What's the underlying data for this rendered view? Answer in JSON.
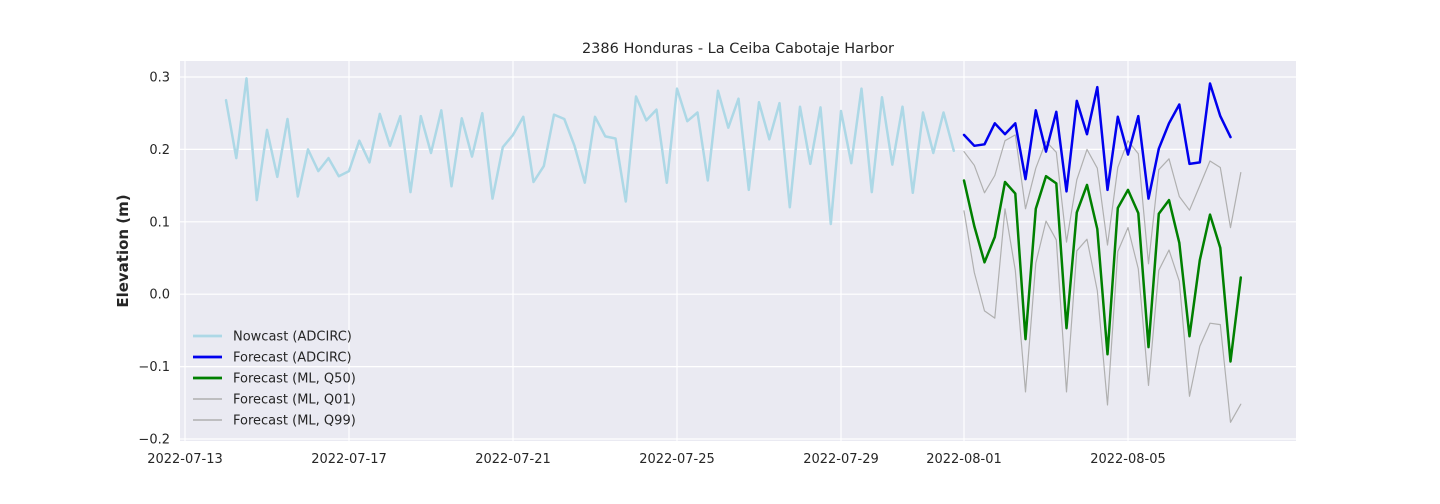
{
  "chart_data": {
    "type": "line",
    "title": "2386 Honduras - La Ceiba Cabotaje Harbor",
    "xlabel": "",
    "ylabel": "Elevation (m)",
    "x_axis": {
      "type": "date",
      "range": [
        "2022-07-13",
        "2022-08-11"
      ],
      "ticks": [
        "2022-07-13",
        "2022-07-17",
        "2022-07-21",
        "2022-07-25",
        "2022-07-29",
        "2022-08-01",
        "2022-08-05"
      ]
    },
    "y_axis": {
      "range": [
        -0.2,
        0.32
      ],
      "ticks": [
        -0.2,
        -0.1,
        0.0,
        0.1,
        0.2,
        0.3
      ],
      "tick_labels": [
        "−0.2",
        "−0.1",
        "0.0",
        "0.1",
        "0.2",
        "0.3"
      ]
    },
    "grid": true,
    "legend_position": "lower-left",
    "background_color": "#eaeaf2",
    "series": [
      {
        "name": "Nowcast (ADCIRC)",
        "color": "#add8e6",
        "width": 2.5,
        "x_start": "2022-07-14",
        "x_step_hours": 6,
        "values": [
          0.268,
          0.188,
          0.298,
          0.13,
          0.227,
          0.162,
          0.242,
          0.135,
          0.2,
          0.17,
          0.188,
          0.163,
          0.17,
          0.212,
          0.182,
          0.249,
          0.205,
          0.246,
          0.141,
          0.246,
          0.195,
          0.254,
          0.149,
          0.243,
          0.19,
          0.25,
          0.132,
          0.203,
          0.22,
          0.245,
          0.155,
          0.177,
          0.248,
          0.242,
          0.205,
          0.154,
          0.245,
          0.218,
          0.215,
          0.128,
          0.273,
          0.24,
          0.255,
          0.154,
          0.284,
          0.239,
          0.251,
          0.157,
          0.281,
          0.23,
          0.27,
          0.144,
          0.265,
          0.214,
          0.264,
          0.12,
          0.259,
          0.18,
          0.258,
          0.097,
          0.253,
          0.181,
          0.284,
          0.141,
          0.272,
          0.179,
          0.259,
          0.14,
          0.251,
          0.195,
          0.251,
          0.198
        ]
      },
      {
        "name": "Forecast (ADCIRC)",
        "color": "#0000ee",
        "width": 2.5,
        "x_start": "2022-08-01",
        "x_step_hours": 6,
        "values": [
          0.22,
          0.205,
          0.207,
          0.236,
          0.221,
          0.236,
          0.159,
          0.254,
          0.197,
          0.252,
          0.142,
          0.267,
          0.221,
          0.286,
          0.144,
          0.245,
          0.193,
          0.246,
          0.132,
          0.201,
          0.236,
          0.262,
          0.18,
          0.182,
          0.291,
          0.246,
          0.217
        ]
      },
      {
        "name": "Forecast (ML, Q50)",
        "color": "#008000",
        "width": 2.5,
        "x_start": "2022-08-01",
        "x_step_hours": 6,
        "values": [
          0.157,
          0.094,
          0.044,
          0.079,
          0.155,
          0.139,
          -0.062,
          0.118,
          0.163,
          0.153,
          -0.047,
          0.113,
          0.151,
          0.09,
          -0.083,
          0.119,
          0.144,
          0.112,
          -0.073,
          0.111,
          0.13,
          0.071,
          -0.058,
          0.047,
          0.11,
          0.064,
          -0.093,
          0.023
        ]
      },
      {
        "name": "Forecast (ML, Q01)",
        "color": "#b0b0b0",
        "width": 1.2,
        "x_start": "2022-08-01",
        "x_step_hours": 6,
        "values": [
          0.115,
          0.03,
          -0.023,
          -0.033,
          0.118,
          0.033,
          -0.135,
          0.043,
          0.101,
          0.075,
          -0.135,
          0.06,
          0.076,
          0.005,
          -0.153,
          0.059,
          0.092,
          0.035,
          -0.126,
          0.033,
          0.061,
          0.018,
          -0.141,
          -0.072,
          -0.04,
          -0.042,
          -0.177,
          -0.152
        ]
      },
      {
        "name": "Forecast (ML, Q99)",
        "color": "#b0b0b0",
        "width": 1.2,
        "x_start": "2022-08-01",
        "x_step_hours": 6,
        "values": [
          0.197,
          0.178,
          0.14,
          0.164,
          0.212,
          0.22,
          0.118,
          0.174,
          0.211,
          0.196,
          0.072,
          0.158,
          0.2,
          0.174,
          0.068,
          0.175,
          0.212,
          0.194,
          0.042,
          0.172,
          0.187,
          0.135,
          0.116,
          0.15,
          0.184,
          0.175,
          0.092,
          0.168
        ]
      }
    ]
  }
}
